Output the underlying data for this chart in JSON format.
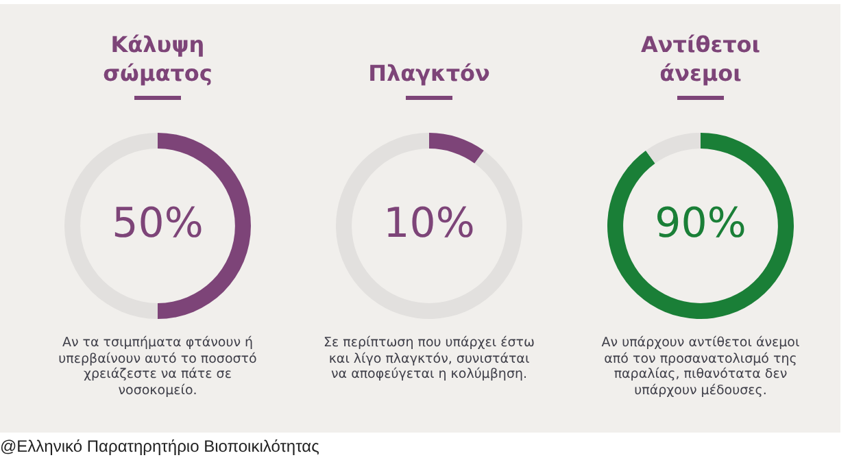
{
  "chart_data": [
    {
      "type": "donut",
      "title": "Κάλυψη σώματος",
      "categories": [
        null,
        null
      ],
      "values": [
        50,
        50
      ],
      "colors": [
        "#7d4478",
        "#e2e0de"
      ],
      "value_labels": [
        "50%",
        null
      ],
      "annotations": [
        "Αν τα τσιμπήματα φτάνουν ή υπερβαίνουν αυτό το ποσοστό χρειάζεστε να πάτε σε νοσοκομείο.",
        "@Ελληνικό Παρατηρητήριο Βιοποικιλότητας"
      ]
    },
    {
      "type": "donut",
      "title": "Πλαγκτόν",
      "categories": [
        null,
        null
      ],
      "values": [
        10,
        90
      ],
      "colors": [
        "#7d4478",
        "#e2e0de"
      ],
      "value_labels": [
        "10%",
        null
      ],
      "annotations": [
        "Σε περίπτωση που υπάρχει έστω και λίγο πλαγκτόν, συνιστάται να αποφεύγεται η κολύμβηση."
      ]
    },
    {
      "type": "donut",
      "title": "Αντίθετοι άνεμοι",
      "categories": [
        null,
        null
      ],
      "values": [
        90,
        10
      ],
      "colors": [
        "#1a7f37",
        "#e2e0de"
      ],
      "value_labels": [
        "90%",
        null
      ],
      "annotations": [
        "Αν υπάρχουν αντίθετοι άνεμοι από τον προσανατολισμό της παραλίας, πιθανότατα δεν υπάρχουν μέδουσες."
      ]
    }
  ]
}
